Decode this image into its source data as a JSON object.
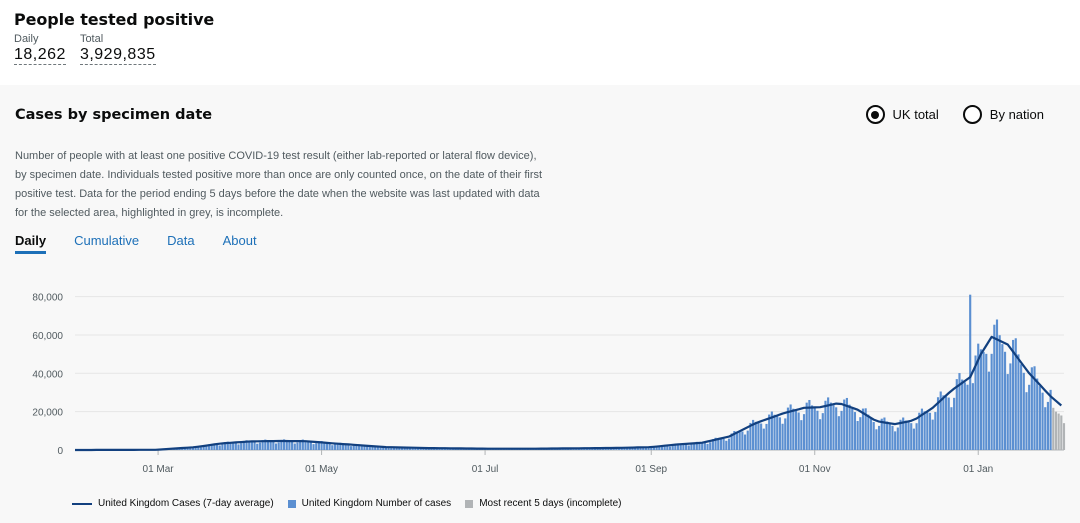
{
  "headline": {
    "title": "People tested positive",
    "daily_label": "Daily",
    "daily_value": "18,262",
    "total_label": "Total",
    "total_value": "3,929,835"
  },
  "card": {
    "title": "Cases by specimen date",
    "radios": [
      {
        "label": "UK total",
        "selected": true
      },
      {
        "label": "By nation",
        "selected": false
      }
    ],
    "description": "Number of people with at least one positive COVID-19 test result (either lab-reported or lateral flow device), by specimen date. Individuals tested positive more than once are only counted once, on the date of their first positive test. Data for the period ending 5 days before the date when the website was last updated with data for the selected area, highlighted in grey, is incomplete.",
    "tabs": [
      "Daily",
      "Cumulative",
      "Data",
      "About"
    ],
    "active_tab": "Daily"
  },
  "colors": {
    "bar": "#5b8fd1",
    "line": "#12407f",
    "incomplete": "#b1b4b6",
    "tab_link": "#1d70b8"
  },
  "chart_data": {
    "type": "bar",
    "title": "",
    "xlabel": "",
    "ylabel": "",
    "ylim": [
      0,
      85000
    ],
    "x_ticks": [
      "01 Mar",
      "01 May",
      "01 Jul",
      "01 Sep",
      "01 Nov",
      "01 Jan"
    ],
    "y_ticks": [
      "0",
      "20,000",
      "40,000",
      "60,000",
      "80,000"
    ],
    "grid": "horizontal",
    "legend_position": "bottom",
    "series": [
      {
        "name": "United Kingdom Cases (7-day average)",
        "kind": "line",
        "x": [
          "2020-01-30",
          "2020-02-29",
          "2020-03-15",
          "2020-03-25",
          "2020-04-05",
          "2020-04-15",
          "2020-04-25",
          "2020-05-05",
          "2020-05-15",
          "2020-05-25",
          "2020-06-10",
          "2020-07-01",
          "2020-07-20",
          "2020-08-05",
          "2020-08-20",
          "2020-09-01",
          "2020-09-10",
          "2020-09-20",
          "2020-09-30",
          "2020-10-10",
          "2020-10-20",
          "2020-10-28",
          "2020-11-03",
          "2020-11-10",
          "2020-11-17",
          "2020-11-24",
          "2020-12-01",
          "2020-12-08",
          "2020-12-15",
          "2020-12-22",
          "2020-12-29",
          "2021-01-02",
          "2021-01-06",
          "2021-01-12",
          "2021-01-20",
          "2021-01-28",
          "2021-02-02"
        ],
        "values": [
          0,
          100,
          1500,
          3500,
          4500,
          4700,
          4600,
          3500,
          2500,
          1500,
          1000,
          700,
          700,
          900,
          1100,
          1500,
          2800,
          3800,
          7000,
          14000,
          19000,
          22000,
          22300,
          24500,
          21000,
          15000,
          13500,
          15500,
          22000,
          31000,
          38000,
          50000,
          59000,
          55000,
          40000,
          28000,
          22000
        ]
      },
      {
        "name": "United Kingdom Number of cases",
        "kind": "bar",
        "x_range": [
          "2020-01-30",
          "2021-01-28"
        ],
        "peak_value": 81000,
        "peak_date": "2020-12-29"
      },
      {
        "name": "Most recent 5 days (incomplete)",
        "kind": "bar",
        "values": [
          22000,
          20000,
          19000,
          18000,
          14000
        ]
      }
    ]
  }
}
